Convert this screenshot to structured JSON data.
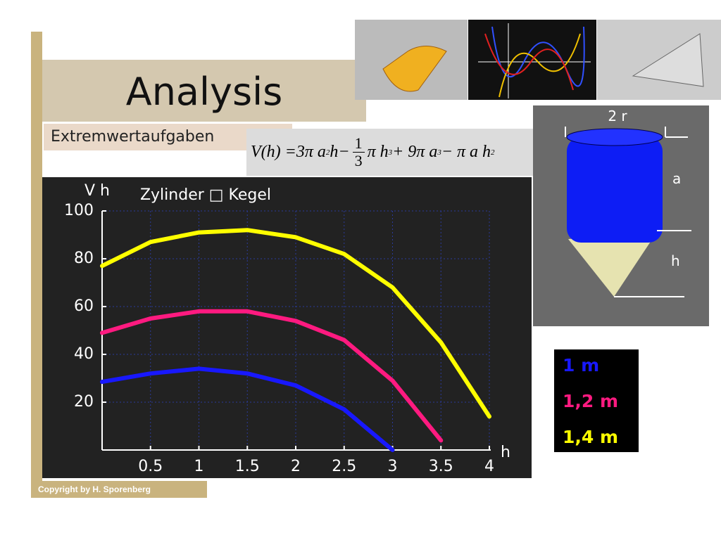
{
  "header": {
    "title": "Analysis",
    "subtitle": "Extremwertaufgaben"
  },
  "formula": [
    "V(h) =3π a",
    "2",
    " h−",
    "1",
    "3",
    " π h",
    "3",
    " + 9π a",
    "3",
    " − π a h",
    "2"
  ],
  "figure": {
    "labels": [
      "2 r",
      "a",
      "h"
    ]
  },
  "footer": {
    "copyright": "Copyright by H. Sporenberg"
  },
  "chart_data": {
    "type": "line",
    "title": "Zylinder □ Kegel",
    "x_label": "h",
    "y_label": "V h",
    "x": [
      0,
      0.5,
      1,
      1.5,
      2,
      2.5,
      3,
      3.5,
      4
    ],
    "series": [
      {
        "name": "1 m",
        "color": "#1818ff",
        "values": [
          28.5,
          32,
          34,
          32,
          27,
          17,
          0,
          null,
          null
        ]
      },
      {
        "name": "1,2 m",
        "color": "#ff1a80",
        "values": [
          49,
          55,
          58,
          58,
          54,
          46,
          29,
          4,
          null
        ]
      },
      {
        "name": "1,4 m",
        "color": "#ffff00",
        "values": [
          77,
          87,
          91,
          92,
          89,
          82,
          68,
          45,
          14
        ]
      }
    ],
    "xlim": [
      0,
      4
    ],
    "ylim": [
      0,
      100
    ],
    "xticks": [
      0.5,
      1,
      1.5,
      2,
      2.5,
      3,
      3.5,
      4
    ],
    "yticks": [
      20,
      40,
      60,
      80,
      100
    ],
    "grid": true
  }
}
